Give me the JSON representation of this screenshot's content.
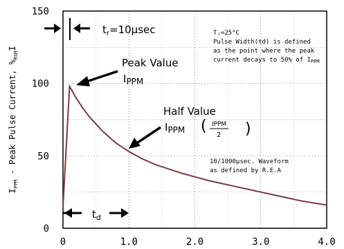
{
  "chart_data": {
    "type": "line",
    "ylabel": {
      "main": "I",
      "main_sub": "PPM",
      "text": " - Peak Pulse Current, %",
      "unit_sub": "RSM",
      "close": "I"
    },
    "xlim": [
      0,
      4.0
    ],
    "ylim": [
      0,
      150
    ],
    "x_ticks": [
      {
        "value": 0,
        "label": "0"
      },
      {
        "value": 1.0,
        "label": "1.0"
      },
      {
        "value": 2.0,
        "label": "2.0"
      },
      {
        "value": 3.0,
        "label": "3.0"
      },
      {
        "value": 4.0,
        "label": "4.0"
      }
    ],
    "y_ticks": [
      {
        "value": 0,
        "label": "0"
      },
      {
        "value": 50,
        "label": "50"
      },
      {
        "value": 100,
        "label": "100"
      },
      {
        "value": 150,
        "label": "150"
      }
    ],
    "grid": true,
    "series": [
      {
        "color": "#7a3b3b",
        "points": [
          [
            0.0,
            15
          ],
          [
            0.1,
            98
          ],
          [
            0.2,
            90
          ],
          [
            0.3,
            83
          ],
          [
            0.4,
            77
          ],
          [
            0.5,
            72
          ],
          [
            0.6,
            67
          ],
          [
            0.7,
            63
          ],
          [
            0.8,
            59
          ],
          [
            0.9,
            56
          ],
          [
            1.0,
            53
          ],
          [
            1.2,
            48
          ],
          [
            1.4,
            44
          ],
          [
            1.6,
            41
          ],
          [
            1.8,
            38
          ],
          [
            2.0,
            35.5
          ],
          [
            2.2,
            33
          ],
          [
            2.4,
            31
          ],
          [
            2.6,
            29
          ],
          [
            2.8,
            27
          ],
          [
            3.0,
            25
          ],
          [
            3.2,
            23
          ],
          [
            3.4,
            21
          ],
          [
            3.6,
            19
          ],
          [
            3.8,
            17.5
          ],
          [
            4.0,
            16
          ]
        ]
      }
    ],
    "annotations": {
      "tr_label": "t",
      "tr_sub": "r",
      "tr_value": "=10μsec",
      "peak_line1": "Peak Value",
      "peak_main": "I",
      "peak_sub": "PPM",
      "half_line1": "Half Value",
      "half_main": "I",
      "half_sub": "PPM",
      "half_frac_num": "IPPM",
      "half_frac_den": "2",
      "td_label": "t",
      "td_sub": "d",
      "note_line1": "Tⱼ=25°C",
      "note_line2": "Pulse Width(td) is defined",
      "note_line3": "as the point where the peak",
      "note_line4": "current decays to 50% of I",
      "note_line4_sub": "PPM",
      "wave_line1": "10/1000μsec. Waveform",
      "wave_line2": "as defined by R.E.A"
    }
  }
}
